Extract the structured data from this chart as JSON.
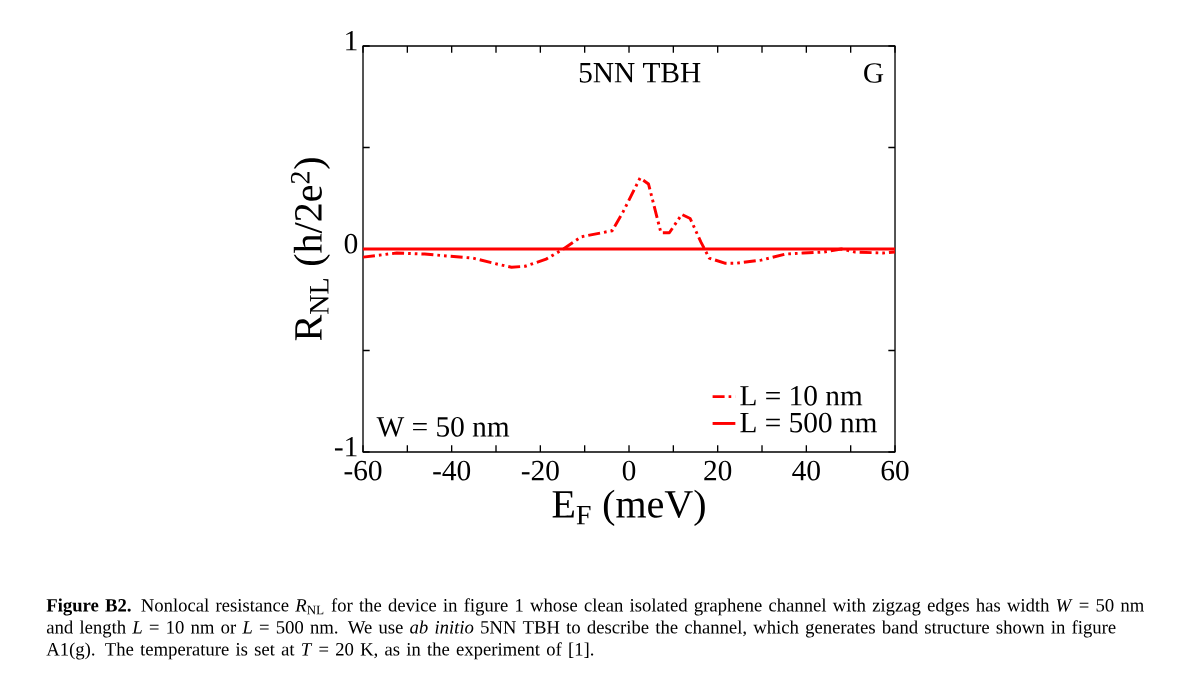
{
  "chart_data": {
    "type": "line",
    "xlabel": "E$_{F}$ (meV)",
    "ylabel": "R$_{NL}$ (h/2e$^{2}$)",
    "xlim": [
      -60,
      60
    ],
    "ylim": [
      -1,
      1
    ],
    "xticks": [
      -60,
      {
        "value": -50,
        "label": null
      },
      -40,
      {
        "value": -30,
        "label": null
      },
      -20,
      {
        "value": -10,
        "label": null
      },
      0,
      {
        "value": 10,
        "label": null
      },
      20,
      {
        "value": 30,
        "label": null
      },
      40,
      {
        "value": 50,
        "label": null
      },
      60
    ],
    "yticks": [
      -1,
      {
        "value": -0.5,
        "label": null
      },
      0,
      {
        "value": 0.5,
        "label": null
      },
      1
    ],
    "legend": "bottom right",
    "series": [
      {
        "name": "L = 10 nm",
        "color": "#ff0000",
        "line_style": "dashed",
        "x": [
          -60,
          -52.4,
          -46.1,
          -35.2,
          -29.6,
          -26.5,
          -23.4,
          -18.7,
          -14.8,
          -10.8,
          -3.8,
          -1.4,
          2.5,
          4.4,
          7.2,
          9.1,
          11.9,
          13.8,
          16.2,
          18.1,
          21.6,
          24.3,
          29.8,
          35.3,
          39.2,
          43.9,
          47.9,
          51,
          57.3,
          60
        ],
        "values": [
          -0.04,
          -0.02,
          -0.025,
          -0.045,
          -0.075,
          -0.09,
          -0.085,
          -0.05,
          0,
          0.06,
          0.09,
          0.18,
          0.35,
          0.32,
          0.08,
          0.08,
          0.17,
          0.15,
          0.035,
          -0.045,
          -0.07,
          -0.07,
          -0.055,
          -0.025,
          -0.02,
          -0.015,
          0,
          -0.015,
          -0.02,
          -0.015
        ]
      },
      {
        "name": "L = 500 nm",
        "color": "#ff0000",
        "line_style": "solid",
        "x": [
          -60,
          60
        ],
        "values": [
          0,
          0
        ]
      }
    ],
    "annotations": [
      "5NN TBH",
      "G",
      "W = 50 nm",
      "**Figure B2.** Nonlocal resistance *R*$_{NL}$ for the device in figure 1 whose clean isolated graphene channel with zigzag edges has width *W* = 50 nm and length *L* = 10 nm or *L* = 500 nm. We use *ab initio* 5NN TBH to describe the channel, which generates band structure shown in figure A1(g). The temperature is set at *T* = 20 K, as in the experiment of [1]."
    ]
  }
}
